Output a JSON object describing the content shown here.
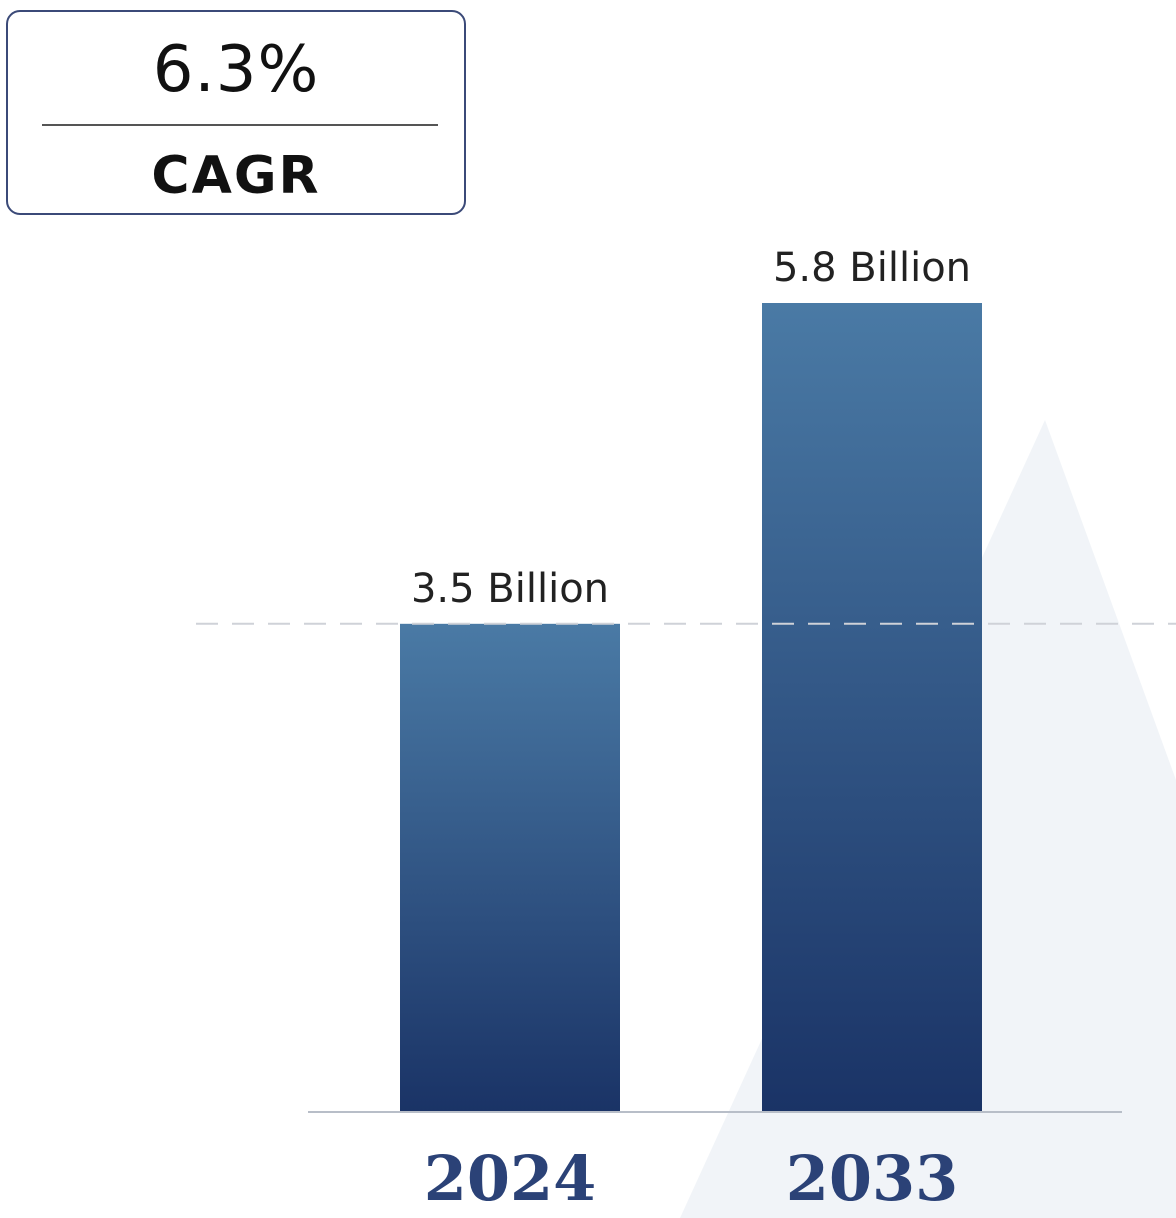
{
  "cagr": {
    "value": "6.3%",
    "label": "CAGR"
  },
  "chart_data": {
    "type": "bar",
    "categories": [
      "2024",
      "2033"
    ],
    "values": [
      3.5,
      5.8
    ],
    "value_labels": [
      "3.5 Billion",
      "5.8 Billion"
    ],
    "unit": "Billion",
    "ylim": [
      0,
      5.8
    ],
    "reference_line_value": 3.5,
    "grid": false,
    "colors": {
      "bar_top": "#4a7aa5",
      "bar_bottom": "#1a3366",
      "year_label": "#2b4277",
      "value_label": "#222222",
      "baseline": "#b8bec8",
      "reference_line": "#cfd2d8",
      "watermark": "#eef1f6"
    }
  }
}
